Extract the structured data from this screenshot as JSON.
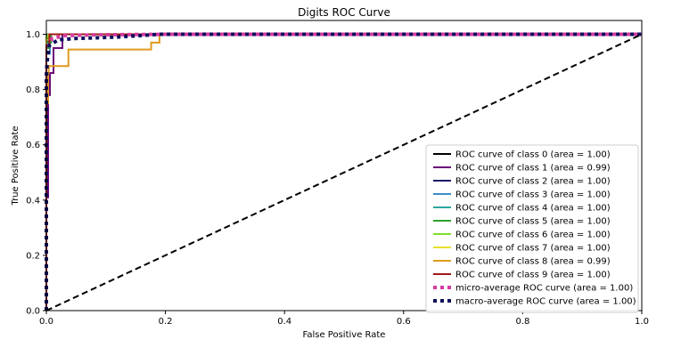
{
  "chart_data": {
    "type": "line",
    "title": "Digits ROC Curve",
    "xlabel": "False Positive Rate",
    "ylabel": "True Positive Rate",
    "xlim": [
      0.0,
      1.0
    ],
    "ylim": [
      0.0,
      1.05
    ],
    "xticks": [
      "0.0",
      "0.2",
      "0.4",
      "0.6",
      "0.8",
      "1.0"
    ],
    "yticks": [
      "0.0",
      "0.2",
      "0.4",
      "0.6",
      "0.8",
      "1.0"
    ],
    "grid": false,
    "legend_position": "lower-right",
    "series": [
      {
        "name": "ROC curve of class 0 (area = 1.00)",
        "color": "#000000",
        "style": "solid",
        "x": [
          0.0,
          0.0,
          0.002,
          0.002,
          1.0
        ],
        "y": [
          0.0,
          0.98,
          0.98,
          1.0,
          1.0
        ]
      },
      {
        "name": "ROC curve of class 1 (area = 0.99)",
        "color": "#6a0a7a",
        "style": "solid",
        "x": [
          0.0,
          0.0,
          0.003,
          0.003,
          0.006,
          0.006,
          0.012,
          0.012,
          0.021,
          0.021,
          0.027,
          0.027,
          1.0
        ],
        "y": [
          0.0,
          0.41,
          0.41,
          0.78,
          0.78,
          0.86,
          0.86,
          0.95,
          0.95,
          0.95,
          0.95,
          1.0,
          1.0
        ]
      },
      {
        "name": "ROC curve of class 2 (area = 1.00)",
        "color": "#1b1a6b",
        "style": "solid",
        "x": [
          0.0,
          0.0,
          0.003,
          0.003,
          1.0
        ],
        "y": [
          0.0,
          0.96,
          0.96,
          1.0,
          1.0
        ]
      },
      {
        "name": "ROC curve of class 3 (area = 1.00)",
        "color": "#3b8fc9",
        "style": "solid",
        "x": [
          0.0,
          0.0,
          0.006,
          0.006,
          1.0
        ],
        "y": [
          0.0,
          0.93,
          0.93,
          1.0,
          1.0
        ]
      },
      {
        "name": "ROC curve of class 4 (area = 1.00)",
        "color": "#2ca6a0",
        "style": "solid",
        "x": [
          0.0,
          0.0,
          0.005,
          0.005,
          1.0
        ],
        "y": [
          0.0,
          0.97,
          0.97,
          1.0,
          1.0
        ]
      },
      {
        "name": "ROC curve of class 5 (area = 1.00)",
        "color": "#2ea12b",
        "style": "solid",
        "x": [
          0.0,
          0.0,
          0.004,
          0.004,
          0.008,
          0.008,
          1.0
        ],
        "y": [
          0.0,
          0.95,
          0.95,
          0.97,
          0.97,
          1.0,
          1.0
        ]
      },
      {
        "name": "ROC curve of class 6 (area = 1.00)",
        "color": "#7ee02a",
        "style": "solid",
        "x": [
          0.0,
          0.0,
          0.003,
          0.003,
          1.0
        ],
        "y": [
          0.0,
          0.99,
          0.99,
          1.0,
          1.0
        ]
      },
      {
        "name": "ROC curve of class 7 (area = 1.00)",
        "color": "#e8e02c",
        "style": "solid",
        "x": [
          0.0,
          0.0,
          0.004,
          0.004,
          1.0
        ],
        "y": [
          0.0,
          0.98,
          0.98,
          1.0,
          1.0
        ]
      },
      {
        "name": "ROC curve of class 8 (area = 0.99)",
        "color": "#e09a1e",
        "style": "solid",
        "x": [
          0.0,
          0.0,
          0.003,
          0.003,
          0.004,
          0.004,
          0.037,
          0.037,
          0.176,
          0.176,
          0.19,
          0.19,
          1.0
        ],
        "y": [
          0.0,
          0.75,
          0.75,
          0.86,
          0.86,
          0.885,
          0.885,
          0.945,
          0.945,
          0.97,
          0.97,
          1.0,
          1.0
        ]
      },
      {
        "name": "ROC curve of class 9 (area = 1.00)",
        "color": "#a01818",
        "style": "solid",
        "x": [
          0.0,
          0.0,
          0.005,
          0.005,
          1.0
        ],
        "y": [
          0.0,
          0.96,
          0.96,
          1.0,
          1.0
        ]
      },
      {
        "name": "micro-average ROC curve (area = 1.00)",
        "color": "#d63ba0",
        "style": "dotted",
        "x": [
          0.0,
          0.0,
          0.002,
          0.005,
          0.01,
          0.03,
          0.08,
          0.2,
          1.0
        ],
        "y": [
          0.0,
          0.85,
          0.93,
          0.97,
          0.985,
          0.995,
          0.998,
          1.0,
          1.0
        ]
      },
      {
        "name": "macro-average ROC curve (area = 1.00)",
        "color": "#0d0d5c",
        "style": "dotted",
        "x": [
          0.0,
          0.0,
          0.002,
          0.005,
          0.02,
          0.05,
          0.12,
          0.19,
          1.0
        ],
        "y": [
          0.0,
          0.84,
          0.92,
          0.96,
          0.98,
          0.985,
          0.99,
          1.0,
          1.0
        ]
      },
      {
        "name": "",
        "color": "#000000",
        "style": "dashed",
        "x": [
          0.0,
          1.0
        ],
        "y": [
          0.0,
          1.0
        ]
      }
    ]
  }
}
